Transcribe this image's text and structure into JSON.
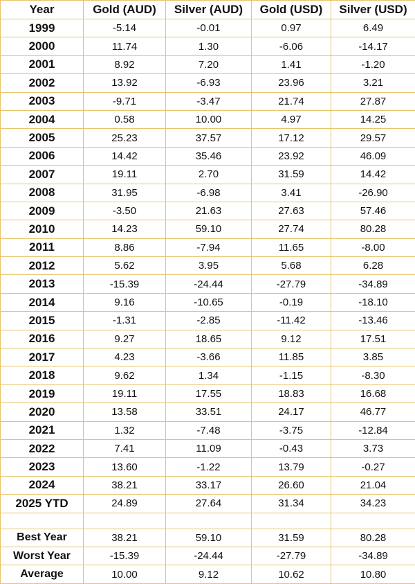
{
  "table": {
    "headers": [
      "Year",
      "Gold (AUD)",
      "Silver (AUD)",
      "Gold (USD)",
      "Silver (USD)"
    ],
    "rows": [
      [
        "1999",
        "-5.14",
        "-0.01",
        "0.97",
        "6.49"
      ],
      [
        "2000",
        "11.74",
        "1.30",
        "-6.06",
        "-14.17"
      ],
      [
        "2001",
        "8.92",
        "7.20",
        "1.41",
        "-1.20"
      ],
      [
        "2002",
        "13.92",
        "-6.93",
        "23.96",
        "3.21"
      ],
      [
        "2003",
        "-9.71",
        "-3.47",
        "21.74",
        "27.87"
      ],
      [
        "2004",
        "0.58",
        "10.00",
        "4.97",
        "14.25"
      ],
      [
        "2005",
        "25.23",
        "37.57",
        "17.12",
        "29.57"
      ],
      [
        "2006",
        "14.42",
        "35.46",
        "23.92",
        "46.09"
      ],
      [
        "2007",
        "19.11",
        "2.70",
        "31.59",
        "14.42"
      ],
      [
        "2008",
        "31.95",
        "-6.98",
        "3.41",
        "-26.90"
      ],
      [
        "2009",
        "-3.50",
        "21.63",
        "27.63",
        "57.46"
      ],
      [
        "2010",
        "14.23",
        "59.10",
        "27.74",
        "80.28"
      ],
      [
        "2011",
        "8.86",
        "-7.94",
        "11.65",
        "-8.00"
      ],
      [
        "2012",
        "5.62",
        "3.95",
        "5.68",
        "6.28"
      ],
      [
        "2013",
        "-15.39",
        "-24.44",
        "-27.79",
        "-34.89"
      ],
      [
        "2014",
        "9.16",
        "-10.65",
        "-0.19",
        "-18.10"
      ],
      [
        "2015",
        "-1.31",
        "-2.85",
        "-11.42",
        "-13.46"
      ],
      [
        "2016",
        "9.27",
        "18.65",
        "9.12",
        "17.51"
      ],
      [
        "2017",
        "4.23",
        "-3.66",
        "11.85",
        "3.85"
      ],
      [
        "2018",
        "9.62",
        "1.34",
        "-1.15",
        "-8.30"
      ],
      [
        "2019",
        "19.11",
        "17.55",
        "18.83",
        "16.68"
      ],
      [
        "2020",
        "13.58",
        "33.51",
        "24.17",
        "46.77"
      ],
      [
        "2021",
        "1.32",
        "-7.48",
        "-3.75",
        "-12.84"
      ],
      [
        "2022",
        "7.41",
        "11.09",
        "-0.43",
        "3.73"
      ],
      [
        "2023",
        "13.60",
        "-1.22",
        "13.79",
        "-0.27"
      ],
      [
        "2024",
        "38.21",
        "33.17",
        "26.60",
        "21.04"
      ],
      [
        "2025 YTD",
        "24.89",
        "27.64",
        "31.34",
        "34.23"
      ]
    ],
    "summary": [
      [
        "Best Year",
        "38.21",
        "59.10",
        "31.59",
        "80.28"
      ],
      [
        "Worst Year",
        "-15.39",
        "-24.44",
        "-27.79",
        "-34.89"
      ],
      [
        "Average",
        "10.00",
        "9.12",
        "10.62",
        "10.80"
      ]
    ]
  },
  "colors": {
    "border": "#e8c46a",
    "text": "#111111",
    "background": "#ffffff"
  }
}
